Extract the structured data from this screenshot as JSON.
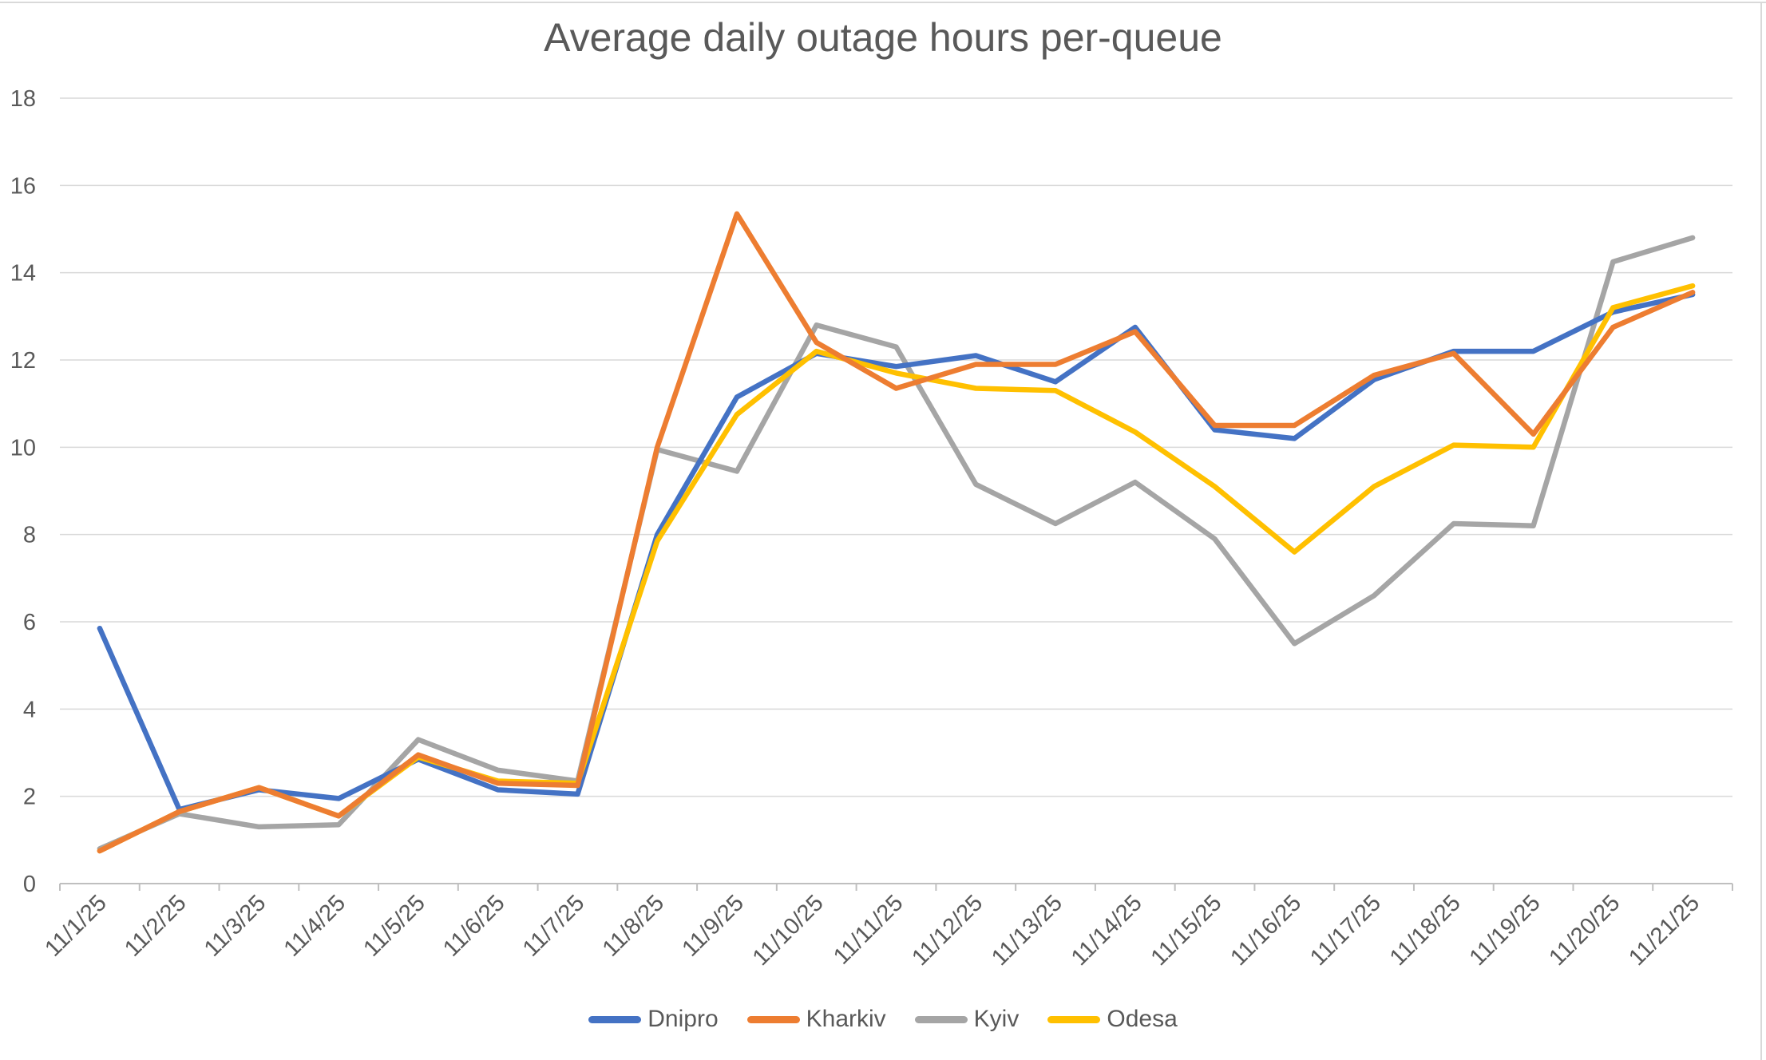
{
  "chart_data": {
    "type": "line",
    "title": "Average daily outage hours per-queue",
    "xlabel": "",
    "ylabel": "",
    "categories": [
      "11/1/25",
      "11/2/25",
      "11/3/25",
      "11/4/25",
      "11/5/25",
      "11/6/25",
      "11/7/25",
      "11/8/25",
      "11/9/25",
      "11/10/25",
      "11/11/25",
      "11/12/25",
      "11/13/25",
      "11/14/25",
      "11/15/25",
      "11/16/25",
      "11/17/25",
      "11/18/25",
      "11/19/25",
      "11/20/25",
      "11/21/25"
    ],
    "series": [
      {
        "name": "Dnipro",
        "color": "#4472C4",
        "values": [
          5.85,
          1.7,
          2.15,
          1.95,
          2.85,
          2.15,
          2.05,
          8.0,
          11.15,
          12.15,
          11.85,
          12.1,
          11.5,
          12.75,
          10.4,
          10.2,
          11.55,
          12.2,
          12.2,
          13.1,
          13.5
        ]
      },
      {
        "name": "Kharkiv",
        "color": "#ED7D31",
        "values": [
          0.75,
          1.65,
          2.2,
          1.55,
          2.95,
          2.3,
          2.25,
          10.0,
          15.35,
          12.4,
          11.35,
          11.9,
          11.9,
          12.65,
          10.5,
          10.5,
          11.65,
          12.15,
          10.3,
          12.75,
          13.55
        ]
      },
      {
        "name": "Kyiv",
        "color": "#A5A5A5",
        "values": [
          0.8,
          1.6,
          1.3,
          1.35,
          3.3,
          2.6,
          2.35,
          9.95,
          9.45,
          12.8,
          12.3,
          9.15,
          8.25,
          9.2,
          7.9,
          5.5,
          6.6,
          8.25,
          8.2,
          14.25,
          14.8
        ]
      },
      {
        "name": "Odesa",
        "color": "#FFC000",
        "values": [
          0.75,
          1.65,
          2.2,
          1.55,
          2.9,
          2.35,
          2.3,
          7.85,
          10.75,
          12.2,
          11.7,
          11.35,
          11.3,
          10.35,
          9.1,
          7.6,
          9.1,
          10.05,
          10.0,
          13.2,
          13.7
        ]
      }
    ],
    "draw_order": [
      2,
      0,
      3,
      1
    ],
    "ylim": [
      0,
      18
    ],
    "yticks": [
      "0",
      "2",
      "4",
      "6",
      "8",
      "10",
      "12",
      "14",
      "16",
      "18"
    ],
    "grid": true,
    "legend_position": "bottom",
    "colors": {
      "grid": "#D9D9D9",
      "axis": "#BFBFBF",
      "text": "#595959",
      "background": "#FFFFFF",
      "chart_border": "#D9D9D9"
    }
  }
}
